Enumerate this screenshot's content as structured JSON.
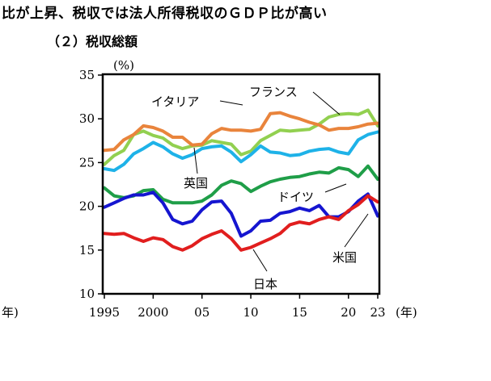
{
  "heading": "比が上昇、税収では法人所得税収のＧＤＰ比が高い",
  "subheading": "（２）税収総額",
  "chart_data": {
    "type": "line",
    "ylabel": "(%)",
    "xlabel_left": "年)",
    "xlabel_right": "(年)",
    "ylim": [
      10,
      35
    ],
    "yticks": [
      10,
      15,
      20,
      25,
      30,
      35
    ],
    "xlim": [
      1995,
      2023
    ],
    "xticks": [
      {
        "value": 1995,
        "label": "1995"
      },
      {
        "value": 2000,
        "label": "2000"
      },
      {
        "value": 2005,
        "label": "05"
      },
      {
        "value": 2010,
        "label": "10"
      },
      {
        "value": 2015,
        "label": "15"
      },
      {
        "value": 2020,
        "label": "20"
      },
      {
        "value": 2023,
        "label": "23"
      }
    ],
    "grid": false,
    "x": [
      1995,
      1996,
      1997,
      1998,
      1999,
      2000,
      2001,
      2002,
      2003,
      2004,
      2005,
      2006,
      2007,
      2008,
      2009,
      2010,
      2011,
      2012,
      2013,
      2014,
      2015,
      2016,
      2017,
      2018,
      2019,
      2020,
      2021,
      2022,
      2023
    ],
    "series": [
      {
        "name": "フランス",
        "color": "#92D050",
        "values": [
          24.8,
          25.8,
          26.4,
          28.2,
          28.6,
          28.1,
          27.8,
          27.0,
          26.6,
          26.9,
          27.0,
          27.5,
          27.3,
          27.1,
          25.9,
          26.3,
          27.5,
          28.1,
          28.7,
          28.6,
          28.7,
          28.8,
          29.4,
          30.2,
          30.5,
          30.6,
          30.5,
          31.0,
          29.2
        ]
      },
      {
        "name": "イタリア",
        "color": "#E9843C",
        "values": [
          26.4,
          26.5,
          27.6,
          28.2,
          29.2,
          29.0,
          28.6,
          27.9,
          27.9,
          27.0,
          27.1,
          28.3,
          28.9,
          28.7,
          28.7,
          28.6,
          28.8,
          30.6,
          30.7,
          30.3,
          30.0,
          29.6,
          29.3,
          28.7,
          28.9,
          28.9,
          29.1,
          29.4,
          29.5
        ]
      },
      {
        "name": "英国",
        "color": "#1EB2E8",
        "values": [
          24.3,
          24.1,
          24.8,
          26.0,
          26.6,
          27.3,
          26.8,
          26.0,
          25.5,
          25.9,
          26.6,
          26.8,
          26.9,
          26.2,
          25.1,
          25.9,
          26.9,
          26.2,
          26.1,
          25.8,
          25.9,
          26.3,
          26.5,
          26.6,
          26.2,
          26.0,
          27.6,
          28.2,
          28.5
        ]
      },
      {
        "name": "ドイツ",
        "color": "#1F9E48",
        "values": [
          22.1,
          21.2,
          21.0,
          21.2,
          21.8,
          21.9,
          20.8,
          20.4,
          20.4,
          20.4,
          20.6,
          21.3,
          22.4,
          22.9,
          22.6,
          21.7,
          22.3,
          22.8,
          23.1,
          23.3,
          23.4,
          23.7,
          23.9,
          23.8,
          24.4,
          24.2,
          23.4,
          24.6,
          23.1
        ]
      },
      {
        "name": "米国",
        "color": "#1515D0",
        "values": [
          19.9,
          20.4,
          20.9,
          21.3,
          21.3,
          21.6,
          20.4,
          18.5,
          18.0,
          18.3,
          19.6,
          20.5,
          20.6,
          19.2,
          16.6,
          17.2,
          18.3,
          18.4,
          19.2,
          19.4,
          19.8,
          19.5,
          20.1,
          18.8,
          18.8,
          19.4,
          20.6,
          21.4,
          18.9
        ]
      },
      {
        "name": "日本",
        "color": "#E11E1E",
        "values": [
          16.9,
          16.8,
          16.9,
          16.4,
          16.0,
          16.4,
          16.2,
          15.4,
          15.0,
          15.5,
          16.3,
          16.8,
          17.2,
          16.3,
          15.0,
          15.3,
          15.8,
          16.3,
          16.9,
          17.9,
          18.2,
          18.0,
          18.5,
          18.8,
          18.5,
          19.5,
          20.2,
          21.2,
          20.5
        ]
      }
    ]
  }
}
